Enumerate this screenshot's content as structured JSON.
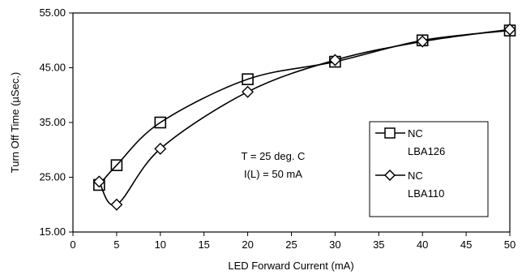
{
  "chart_data": {
    "type": "line",
    "xlabel": "LED Forward Current (mA)",
    "ylabel": "Turn Off Time (µSec.)",
    "xlim": [
      0,
      50
    ],
    "ylim": [
      15,
      55
    ],
    "x_ticks": [
      "0",
      "5",
      "10",
      "15",
      "20",
      "25",
      "30",
      "35",
      "40",
      "45",
      "50"
    ],
    "y_ticks": [
      "15.00",
      "25.00",
      "35.00",
      "45.00",
      "55.00"
    ],
    "grid": false,
    "legend_position": "right",
    "annotation": {
      "line1": "T = 25 deg. C",
      "line2": "I(L) = 50 mA"
    },
    "series": [
      {
        "name_line1": "NC",
        "name_line2": "LBA126",
        "marker": "square",
        "x": [
          3,
          5,
          10,
          20,
          30,
          40,
          50
        ],
        "y": [
          23.6,
          27.2,
          35.0,
          42.9,
          46.1,
          50.0,
          51.8
        ]
      },
      {
        "name_line1": "NC",
        "name_line2": "LBA110",
        "marker": "diamond",
        "x": [
          3,
          5,
          10,
          20,
          30,
          40,
          50
        ],
        "y": [
          24.2,
          20.0,
          30.2,
          40.6,
          46.4,
          49.8,
          52.0
        ]
      }
    ]
  }
}
